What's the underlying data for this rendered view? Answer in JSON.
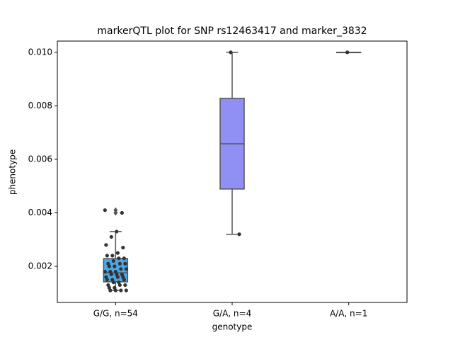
{
  "chart_data": {
    "type": "box",
    "title": "markerQTL plot for SNP rs12463417 and marker_3832",
    "x_label": "genotype",
    "y_label": "phenotype",
    "categories": [
      "G/G, n=54",
      "G/A, n=4",
      "A/A, n=1"
    ],
    "colors": [
      "#4aa8e8",
      "#9090f4",
      "#d6d6f0"
    ],
    "boxes": [
      {
        "whislo": 0.0011,
        "q1": 0.00142,
        "med": 0.00176,
        "q3": 0.00229,
        "whishi": 0.0033,
        "fliers": [
          0.004,
          0.0041
        ],
        "points": [
          0.0041,
          0.004,
          0.0033,
          0.0031,
          0.0028,
          0.0027,
          0.0025,
          0.0024,
          0.0024,
          0.0023,
          0.0023,
          0.0022,
          0.0021,
          0.0021,
          0.0021,
          0.002,
          0.002,
          0.0019,
          0.0019,
          0.0018,
          0.0018,
          0.0018,
          0.0017,
          0.0017,
          0.0017,
          0.0016,
          0.0016,
          0.0016,
          0.0015,
          0.0015,
          0.0015,
          0.0014,
          0.0014,
          0.0013,
          0.0013,
          0.0013,
          0.0012,
          0.0012,
          0.0011,
          0.0011,
          0.0011,
          0.0011
        ]
      },
      {
        "whislo": 0.0032,
        "q1": 0.00489,
        "med": 0.00658,
        "q3": 0.00828,
        "whishi": 0.01,
        "fliers": [],
        "points": [
          0.01,
          0.0032
        ]
      },
      {
        "whislo": 0.01,
        "q1": 0.01,
        "med": 0.01,
        "q3": 0.01,
        "whishi": 0.01,
        "fliers": [],
        "points": [
          0.01
        ]
      }
    ],
    "ylim": [
      0.00065,
      0.01042
    ],
    "yticks": [
      0.002,
      0.004,
      0.006,
      0.008,
      {
        "value": 0.01,
        "label": "0.010"
      }
    ]
  }
}
